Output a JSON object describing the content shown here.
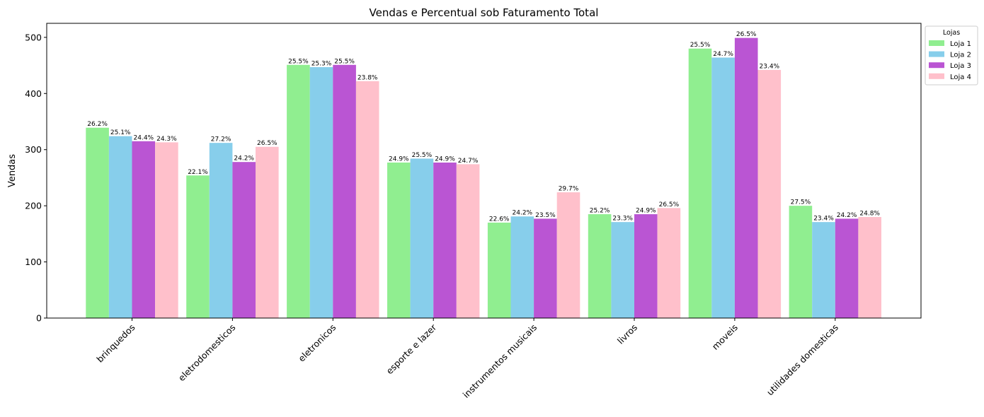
{
  "chart_data": {
    "type": "bar",
    "title": "Vendas e Percentual sob Faturamento Total",
    "ylabel": "Vendas",
    "xlabel": "",
    "ylim": [
      0,
      525
    ],
    "yticks": [
      0,
      100,
      200,
      300,
      400,
      500
    ],
    "grid": false,
    "legend": {
      "title": "Lojas",
      "placement": "upper-right-outside"
    },
    "categories": [
      "brinquedos",
      "eletrodomesticos",
      "eletronicos",
      "esporte e lazer",
      "instrumentos musicais",
      "livros",
      "moveis",
      "utilidades domesticas"
    ],
    "series": [
      {
        "name": "Loja 1",
        "color": "#90ee90",
        "values": [
          339,
          254,
          451,
          277,
          170,
          185,
          480,
          200
        ],
        "labels": [
          "26.2%",
          "22.1%",
          "25.5%",
          "24.9%",
          "22.6%",
          "25.2%",
          "25.5%",
          "27.5%"
        ]
      },
      {
        "name": "Loja 2",
        "color": "#87ceeb",
        "values": [
          324,
          312,
          447,
          284,
          181,
          171,
          464,
          171
        ],
        "labels": [
          "25.1%",
          "27.2%",
          "25.3%",
          "25.5%",
          "24.2%",
          "23.3%",
          "24.7%",
          "23.4%"
        ]
      },
      {
        "name": "Loja 3",
        "color": "#ba55d3",
        "values": [
          315,
          278,
          451,
          277,
          177,
          185,
          499,
          177
        ],
        "labels": [
          "24.4%",
          "24.2%",
          "25.5%",
          "24.9%",
          "23.5%",
          "24.9%",
          "26.5%",
          "24.2%"
        ]
      },
      {
        "name": "Loja 4",
        "color": "#ffc0cb",
        "values": [
          313,
          305,
          422,
          274,
          224,
          196,
          442,
          180
        ],
        "labels": [
          "24.3%",
          "26.5%",
          "23.8%",
          "24.7%",
          "29.7%",
          "26.5%",
          "23.4%",
          "24.8%"
        ]
      }
    ]
  }
}
